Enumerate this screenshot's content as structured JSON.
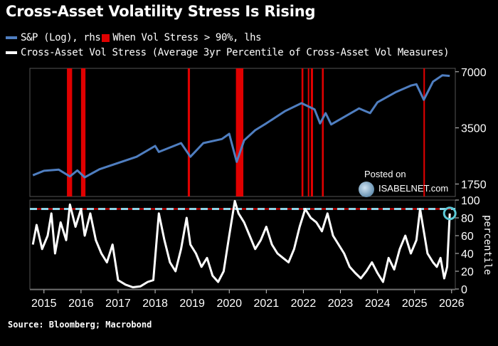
{
  "title": "Cross-Asset Volatility Stress Is Rising",
  "legend": [
    {
      "label": "S&P (Log), rhs",
      "color": "#4f7ec0"
    },
    {
      "label": "When Vol Stress > 90%, lhs",
      "color": "#e00000"
    },
    {
      "label": "Cross-Asset Vol Stress (Average 3yr Percentile of Cross-Asset Vol Measures)",
      "color": "#ffffff"
    }
  ],
  "source": "Source: Bloomberg; Macrobond",
  "watermark": {
    "line1": "Posted on",
    "line2": "ISABELNET.com",
    "logo_icon": "globe-logo-icon"
  },
  "chart_data": [
    {
      "type": "line",
      "name": "S&P (Log)",
      "axis": "right",
      "scale": "log",
      "ylim": [
        1500,
        7300
      ],
      "yticks": [
        "7000",
        "3500",
        "1750"
      ],
      "ytick_values": [
        7000,
        3500,
        1750
      ],
      "series": {
        "x": [
          2014.7,
          2015.0,
          2015.4,
          2015.7,
          2015.9,
          2016.1,
          2016.5,
          2017.0,
          2017.5,
          2018.0,
          2018.1,
          2018.7,
          2018.95,
          2019.3,
          2019.8,
          2020.0,
          2020.2,
          2020.4,
          2020.7,
          2021.0,
          2021.5,
          2021.95,
          2022.3,
          2022.45,
          2022.6,
          2022.75,
          2023.0,
          2023.5,
          2023.8,
          2024.0,
          2024.5,
          2024.9,
          2025.05,
          2025.25,
          2025.5,
          2025.75,
          2025.95
        ],
        "y": [
          1950,
          2060,
          2090,
          1920,
          2070,
          1900,
          2100,
          2270,
          2450,
          2800,
          2600,
          2900,
          2450,
          2900,
          3050,
          3250,
          2300,
          3000,
          3400,
          3700,
          4300,
          4750,
          4400,
          3700,
          4200,
          3650,
          3900,
          4450,
          4200,
          4800,
          5450,
          5900,
          6000,
          4950,
          6200,
          6700,
          6650
        ],
        "color": "#4f7ec0"
      },
      "stress_periods": [
        {
          "x0": 2015.62,
          "x1": 2015.76
        },
        {
          "x0": 2016.0,
          "x1": 2016.12
        },
        {
          "x0": 2018.88,
          "x1": 2018.94
        },
        {
          "x0": 2020.18,
          "x1": 2020.38
        },
        {
          "x0": 2021.95,
          "x1": 2022.0
        },
        {
          "x0": 2022.12,
          "x1": 2022.16
        },
        {
          "x0": 2022.2,
          "x1": 2022.26
        },
        {
          "x0": 2022.5,
          "x1": 2022.55
        },
        {
          "x0": 2025.24,
          "x1": 2025.28
        }
      ],
      "stress_color": "#e00000"
    },
    {
      "type": "line",
      "name": "Cross-Asset Vol Stress",
      "axis": "right",
      "ylabel": "percentile",
      "ylim": [
        0,
        100
      ],
      "yticks": [
        "100",
        "80",
        "60",
        "40",
        "20",
        "0"
      ],
      "ytick_values": [
        100,
        80,
        60,
        40,
        20,
        0
      ],
      "threshold": 90,
      "series": {
        "x": [
          2014.7,
          2014.8,
          2014.95,
          2015.1,
          2015.2,
          2015.3,
          2015.45,
          2015.6,
          2015.7,
          2015.85,
          2016.0,
          2016.1,
          2016.25,
          2016.4,
          2016.55,
          2016.7,
          2016.85,
          2017.0,
          2017.2,
          2017.4,
          2017.6,
          2017.8,
          2017.95,
          2018.1,
          2018.25,
          2018.4,
          2018.55,
          2018.7,
          2018.85,
          2018.95,
          2019.1,
          2019.25,
          2019.4,
          2019.55,
          2019.7,
          2019.85,
          2020.0,
          2020.15,
          2020.25,
          2020.4,
          2020.55,
          2020.7,
          2020.85,
          2021.0,
          2021.15,
          2021.3,
          2021.45,
          2021.6,
          2021.75,
          2021.9,
          2022.05,
          2022.2,
          2022.35,
          2022.5,
          2022.65,
          2022.8,
          2022.95,
          2023.1,
          2023.25,
          2023.4,
          2023.55,
          2023.7,
          2023.85,
          2024.0,
          2024.15,
          2024.3,
          2024.45,
          2024.6,
          2024.75,
          2024.9,
          2025.05,
          2025.15,
          2025.25,
          2025.35,
          2025.5,
          2025.6,
          2025.7,
          2025.8,
          2025.88,
          2025.95
        ],
        "y": [
          50,
          72,
          45,
          60,
          85,
          40,
          75,
          55,
          95,
          70,
          90,
          60,
          85,
          55,
          40,
          30,
          50,
          10,
          5,
          2,
          3,
          8,
          10,
          85,
          55,
          30,
          20,
          45,
          80,
          50,
          40,
          25,
          35,
          15,
          8,
          20,
          60,
          99,
          85,
          75,
          60,
          45,
          55,
          70,
          50,
          40,
          35,
          30,
          45,
          70,
          90,
          80,
          75,
          65,
          85,
          60,
          50,
          40,
          25,
          18,
          12,
          20,
          30,
          18,
          8,
          35,
          22,
          45,
          60,
          40,
          55,
          90,
          65,
          40,
          30,
          25,
          35,
          12,
          25,
          85
        ],
        "color": "#ffffff"
      },
      "latest_marker": {
        "x": 2025.95,
        "y": 85,
        "color": "#5cc9d6"
      },
      "threshold_color": "#8fd3e6"
    }
  ],
  "x_axis": {
    "tick_labels": [
      "2015",
      "2016",
      "2017",
      "2018",
      "2019",
      "2020",
      "2021",
      "2022",
      "2023",
      "2024",
      "2025",
      "2026"
    ],
    "tick_values": [
      2015,
      2016,
      2017,
      2018,
      2019,
      2020,
      2021,
      2022,
      2023,
      2024,
      2025,
      2026
    ],
    "xlim": [
      2014.62,
      2026.1
    ]
  }
}
